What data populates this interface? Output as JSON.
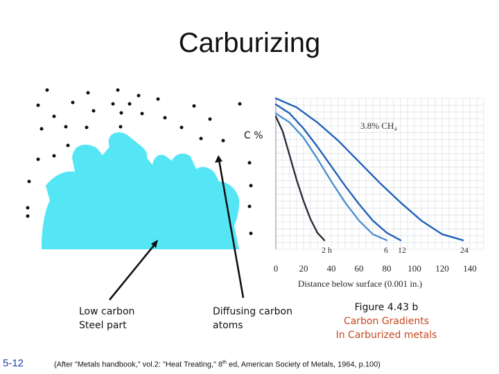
{
  "slide": {
    "title": "Carburizing",
    "c_percent_label": "C %",
    "captions": {
      "part_line1": "Low carbon",
      "part_line2": "Steel part",
      "atoms_line1": "Diffusing carbon",
      "atoms_line2": "atoms",
      "figure_line1": "Figure 4.43 b",
      "figure_line2": "Carbon Gradients",
      "figure_line3": "In Carburized metals"
    },
    "slide_number": "5-12",
    "citation_a": "(After \"Metals handbook,\" vol.2: \"Heat Treating,\" 8",
    "citation_sup": "th",
    "citation_b": " ed, American Society of Metals, 1964, p.100)"
  },
  "colors": {
    "gear_fill": "#55e6f5",
    "curve_dark": "#2b2b3a",
    "curve_blue": "#2060b8",
    "curve_light": "#4a8fd0",
    "figure_caption": "#c8461b",
    "slide_number": "#1a3fa8"
  },
  "chart_data": {
    "type": "line",
    "annotation": "3.8% CH₄",
    "xlabel": "Distance below surface (0.001 in.)",
    "x_ticks": [
      0,
      20,
      40,
      60,
      80,
      100,
      120,
      140
    ],
    "x_tick_labels": [
      "0",
      "20",
      "40",
      "60",
      "80",
      "100",
      "120",
      "140"
    ],
    "xlim": [
      0,
      150
    ],
    "ylim": [
      0,
      1
    ],
    "grid": true,
    "series": [
      {
        "name": "2 h",
        "color": "#2b2b3a",
        "x": [
          0,
          5,
          10,
          15,
          20,
          25,
          30,
          35
        ],
        "y": [
          0.88,
          0.78,
          0.62,
          0.46,
          0.32,
          0.2,
          0.11,
          0.06
        ]
      },
      {
        "name": "6",
        "color": "#4a8fd0",
        "x": [
          0,
          10,
          20,
          30,
          40,
          50,
          60,
          70,
          80
        ],
        "y": [
          0.9,
          0.84,
          0.74,
          0.6,
          0.45,
          0.31,
          0.19,
          0.1,
          0.06
        ]
      },
      {
        "name": "12",
        "color": "#2060b8",
        "x": [
          0,
          10,
          20,
          30,
          40,
          50,
          60,
          70,
          80,
          90
        ],
        "y": [
          0.96,
          0.9,
          0.8,
          0.68,
          0.55,
          0.42,
          0.3,
          0.19,
          0.11,
          0.06
        ]
      },
      {
        "name": "24",
        "color": "#2060b8",
        "x": [
          0,
          15,
          30,
          45,
          60,
          75,
          90,
          105,
          120,
          135
        ],
        "y": [
          1.0,
          0.94,
          0.84,
          0.72,
          0.58,
          0.44,
          0.31,
          0.19,
          0.1,
          0.06
        ]
      }
    ]
  }
}
